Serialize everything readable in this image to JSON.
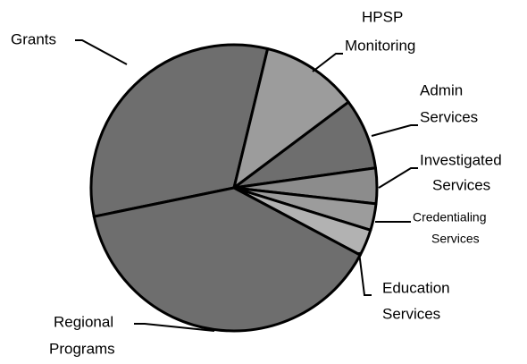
{
  "chart_data": {
    "type": "pie",
    "categories": [
      "Grants",
      "HPSP Monitoring",
      "Admin Services",
      "Investigated Services",
      "Credentialing Services",
      "Education Services",
      "Regional Programs"
    ],
    "values": [
      32,
      11,
      8,
      4,
      3,
      3,
      39
    ],
    "colors": [
      "#6e6e6e",
      "#9c9c9c",
      "#6e6e6e",
      "#8c8c8c",
      "#9c9c9c",
      "#b2b2b2",
      "#6e6e6e"
    ]
  }
}
